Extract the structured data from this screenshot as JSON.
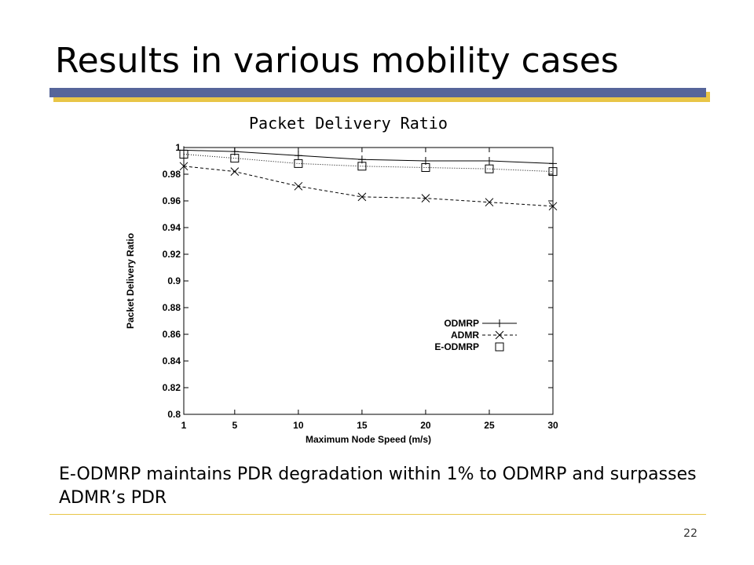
{
  "slide": {
    "title": "Results in various mobility cases",
    "chart_caption": "Packet Delivery Ratio",
    "summary": "E-ODMRP maintains PDR degradation within 1% to ODMRP and surpasses ADMR’s PDR",
    "page_number": "22",
    "colors": {
      "title_bar": "#56659a",
      "title_bar_shadow": "#e8c547",
      "footer_rule": "#e8c547"
    }
  },
  "chart_data": {
    "type": "line",
    "xlabel": "Maximum Node Speed (m/s)",
    "ylabel": "Packet Delivery Ratio",
    "x": [
      1,
      5,
      10,
      15,
      20,
      25,
      30
    ],
    "x_ticks": [
      1,
      5,
      10,
      15,
      20,
      25,
      30
    ],
    "y_ticks": [
      0.8,
      0.82,
      0.84,
      0.86,
      0.88,
      0.9,
      0.92,
      0.94,
      0.96,
      0.98,
      1
    ],
    "xlim": [
      1,
      30
    ],
    "ylim": [
      0.8,
      1.0
    ],
    "grid": false,
    "legend_position": "right",
    "series": [
      {
        "name": "ODMRP",
        "values": [
          0.998,
          0.997,
          0.994,
          0.991,
          0.99,
          0.99,
          0.988
        ],
        "marker": "plus",
        "line": "solid"
      },
      {
        "name": "ADMR",
        "values": [
          0.986,
          0.982,
          0.971,
          0.963,
          0.962,
          0.959,
          0.956
        ],
        "marker": "x",
        "line": "dashed"
      },
      {
        "name": "E-ODMRP",
        "values": [
          0.995,
          0.992,
          0.988,
          0.986,
          0.985,
          0.984,
          0.982
        ],
        "marker": "square",
        "line": "dotted"
      }
    ]
  }
}
